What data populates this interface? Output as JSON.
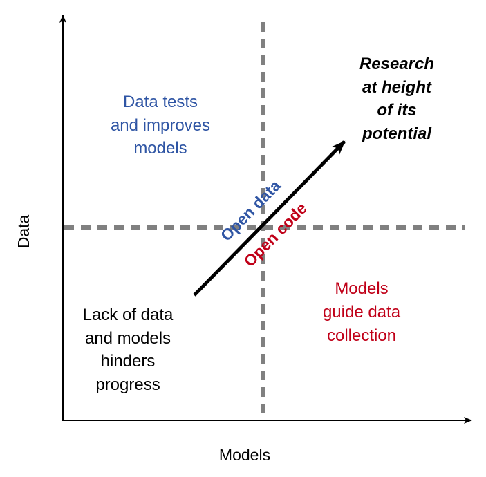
{
  "axes": {
    "x_label": "Models",
    "y_label": "Data"
  },
  "quadrants": {
    "top_left": [
      "Data tests",
      "and improves",
      "models"
    ],
    "top_right": [
      "Research",
      "at height",
      "of its",
      "potential"
    ],
    "bottom_left": [
      "Lack of data",
      "and models",
      "hinders",
      "progress"
    ],
    "bottom_right": [
      "Models",
      "guide data",
      "collection"
    ]
  },
  "arrow_labels": {
    "upper": "Open data",
    "lower": "Open code"
  },
  "colors": {
    "axis": "#000000",
    "divider": "#808080",
    "blue": "#2f55a4",
    "red": "#c00018",
    "black": "#000000"
  }
}
